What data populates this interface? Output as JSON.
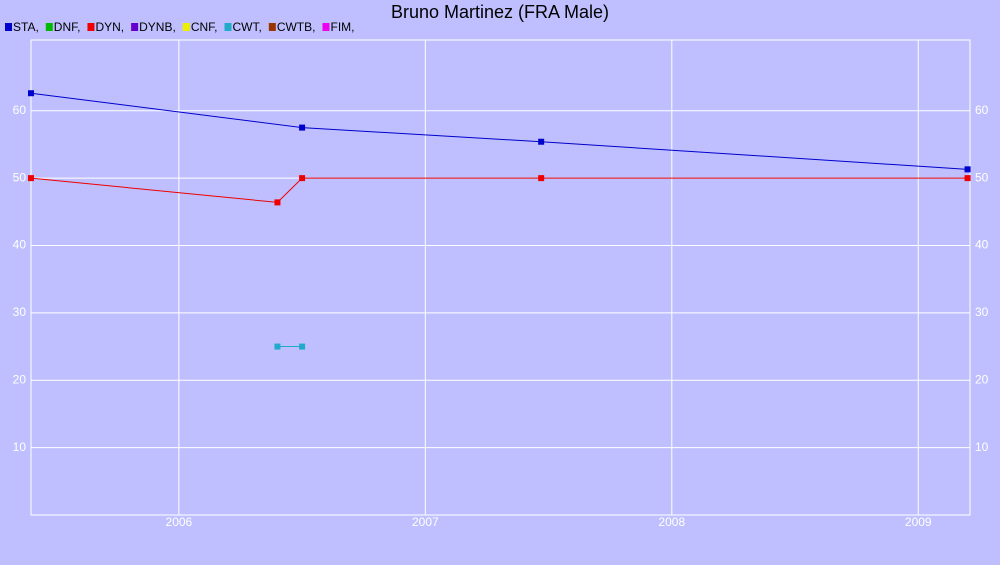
{
  "chart_data": {
    "type": "line",
    "title": "Bruno Martinez (FRA Male)",
    "xlim": [
      2005.4,
      2009.21
    ],
    "xticks": [
      2006,
      2007,
      2008,
      2009
    ],
    "ylim": [
      0,
      70.5
    ],
    "yticks": [
      10,
      20,
      30,
      40,
      50,
      60
    ],
    "grid": true,
    "series": [
      {
        "name": "STA,",
        "color": "#0000cc",
        "x": [
          2005.4,
          2006.5,
          2007.47,
          2009.2
        ],
        "values": [
          62.6,
          57.5,
          55.4,
          51.3
        ]
      },
      {
        "name": "DNF,",
        "color": "#00bb00",
        "x": [],
        "values": []
      },
      {
        "name": "DYN,",
        "color": "#ee0000",
        "x": [
          2005.4,
          2006.4,
          2006.5,
          2007.47,
          2009.2
        ],
        "values": [
          50,
          46.4,
          50,
          50,
          50
        ]
      },
      {
        "name": "DYNB,",
        "color": "#6600cc",
        "x": [],
        "values": []
      },
      {
        "name": "CNF,",
        "color": "#eeee00",
        "x": [],
        "values": []
      },
      {
        "name": "CWT,",
        "color": "#22aacc",
        "x": [
          2006.4,
          2006.5
        ],
        "values": [
          25,
          25
        ]
      },
      {
        "name": "CWTB,",
        "color": "#993300",
        "x": [],
        "values": []
      },
      {
        "name": "FIM,",
        "color": "#ee00ee",
        "x": [],
        "values": []
      }
    ]
  }
}
